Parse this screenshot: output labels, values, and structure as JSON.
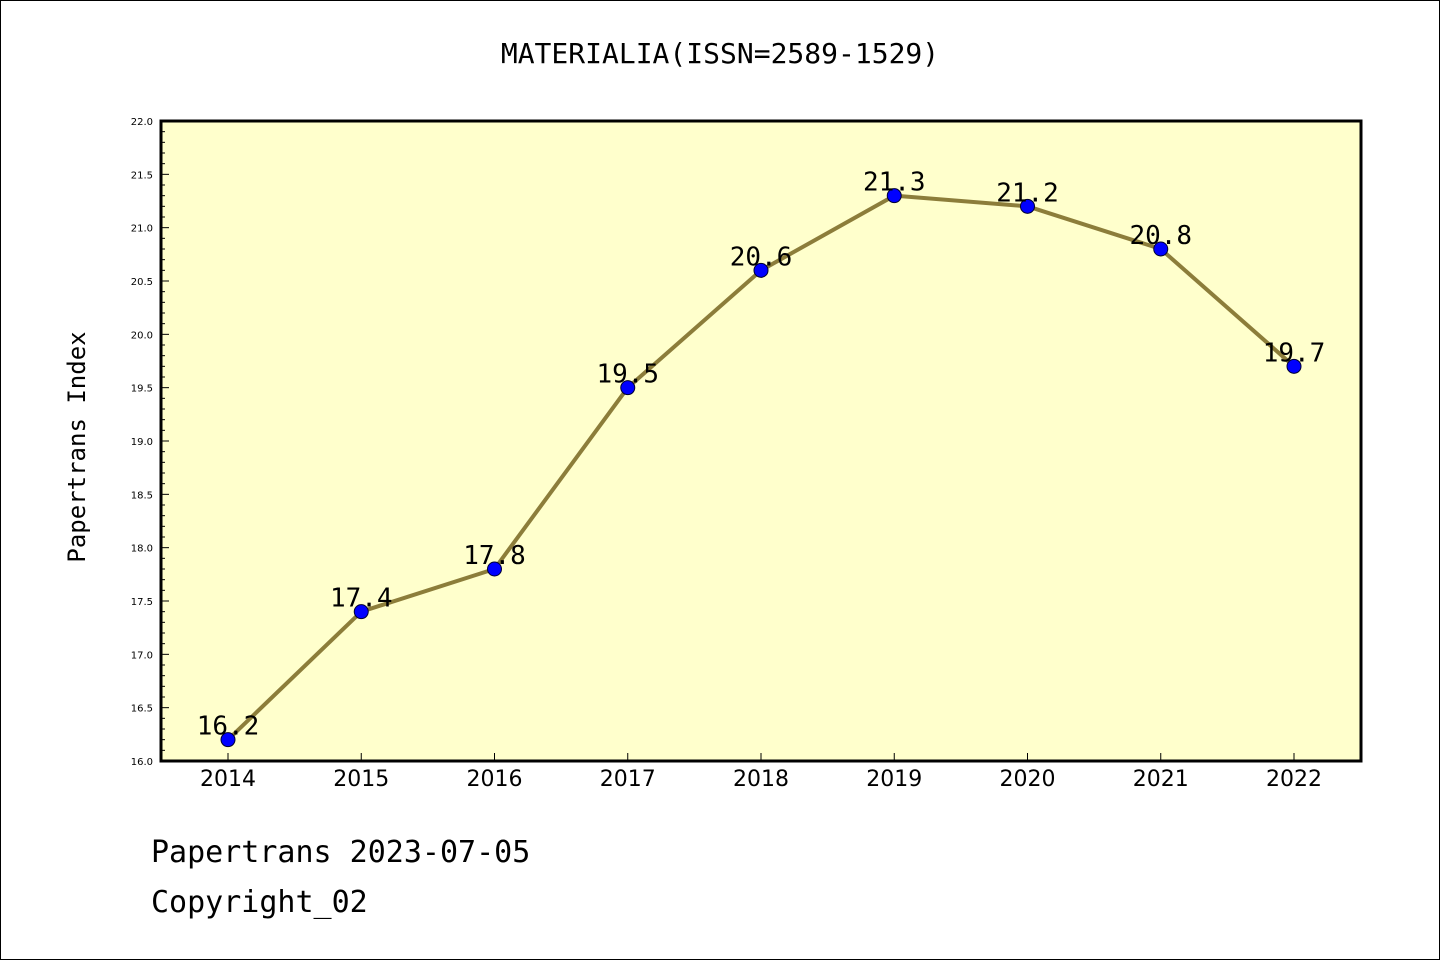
{
  "chart_data": {
    "type": "line",
    "title": "MATERIALIA(ISSN=2589-1529)",
    "xlabel": "",
    "ylabel": "Papertrans Index",
    "categories": [
      "2014",
      "2015",
      "2016",
      "2017",
      "2018",
      "2019",
      "2020",
      "2021",
      "2022"
    ],
    "series": [
      {
        "values": [
          16.2,
          17.4,
          17.8,
          19.5,
          20.6,
          21.3,
          21.2,
          20.8,
          19.7
        ]
      }
    ],
    "data_labels": [
      "16.2",
      "17.4",
      "17.8",
      "19.5",
      "20.6",
      "21.3",
      "21.2",
      "20.8",
      "19.7"
    ],
    "ylim": [
      16.0,
      22.0
    ],
    "yticks": [
      "16.0",
      "16.5",
      "17.0",
      "17.5",
      "18.0",
      "18.5",
      "19.0",
      "19.5",
      "20.0",
      "20.5",
      "21.0",
      "21.5",
      "22.0"
    ],
    "grid": false,
    "colors": {
      "plot_background": "#ffffcc",
      "line": "#8c7d3a",
      "marker": "#0000ff"
    }
  },
  "footer": {
    "date_text": "Papertrans 2023-07-05",
    "copyright_text": "Copyright_02"
  }
}
